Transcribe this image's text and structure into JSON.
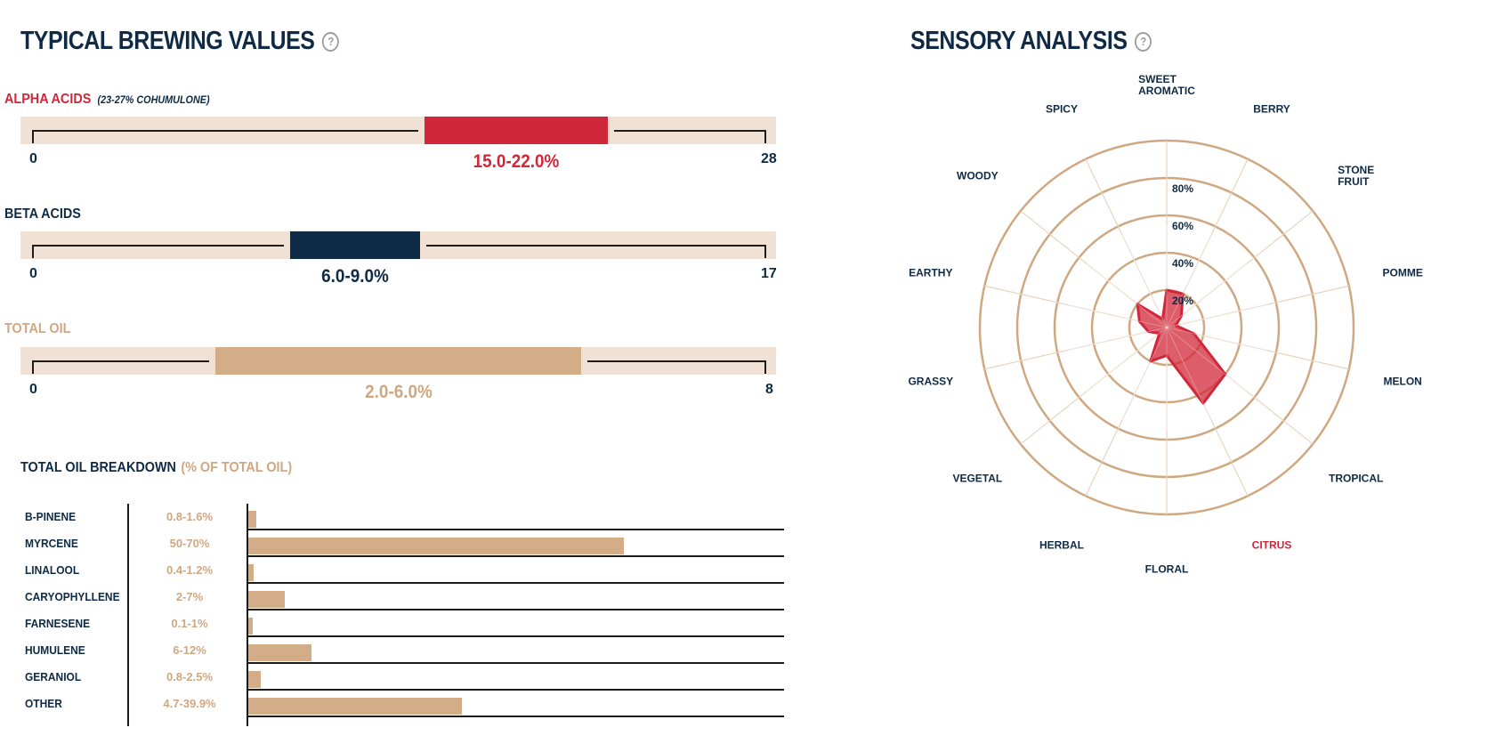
{
  "brewing": {
    "title": "TYPICAL BREWING VALUES",
    "help": "?",
    "alpha": {
      "label": "ALPHA ACIDS",
      "note": "(23-27% COHUMULONE)",
      "min_label": "0",
      "max_label": "28",
      "value_label": "15.0-22.0%",
      "min": 0,
      "max": 28,
      "low": 15.0,
      "high": 22.0,
      "color": "#d1273a"
    },
    "beta": {
      "label": "BETA ACIDS",
      "min_label": "0",
      "max_label": "17",
      "value_label": "6.0-9.0%",
      "min": 0,
      "max": 17,
      "low": 6.0,
      "high": 9.0,
      "color": "#0f2a44"
    },
    "oil": {
      "label": "TOTAL OIL",
      "min_label": "0",
      "max_label": "8",
      "value_label": "2.0-6.0%",
      "min": 0,
      "max": 8,
      "low": 2.0,
      "high": 6.0,
      "color": "#d3ac88"
    }
  },
  "oil_breakdown": {
    "title": "TOTAL OIL BREAKDOWN",
    "unit": "(% OF TOTAL OIL)",
    "rows": [
      {
        "name": "B-PINENE",
        "range": "0.8-1.6%",
        "high": 1.6
      },
      {
        "name": "MYRCENE",
        "range": "50-70%",
        "high": 70
      },
      {
        "name": "LINALOOL",
        "range": "0.4-1.2%",
        "high": 1.2
      },
      {
        "name": "CARYOPHYLLENE",
        "range": "2-7%",
        "high": 7
      },
      {
        "name": "FARNESENE",
        "range": "0.1-1%",
        "high": 1
      },
      {
        "name": "HUMULENE",
        "range": "6-12%",
        "high": 12
      },
      {
        "name": "GERANIOL",
        "range": "0.8-2.5%",
        "high": 2.5
      },
      {
        "name": "OTHER",
        "range": "4.7-39.9%",
        "high": 39.9
      }
    ]
  },
  "sensory": {
    "title": "SENSORY ANALYSIS",
    "help": "?"
  },
  "chart_data": {
    "type": "radar",
    "categories": [
      "SWEET AROMATIC",
      "BERRY",
      "STONE FRUIT",
      "POMME",
      "MELON",
      "TROPICAL",
      "CITRUS",
      "FLORAL",
      "HERBAL",
      "VEGETAL",
      "GRASSY",
      "EARTHY",
      "WOODY",
      "SPICY"
    ],
    "values": [
      20,
      20,
      10,
      5,
      15,
      40,
      45,
      15,
      20,
      5,
      10,
      15,
      20,
      5
    ],
    "ticks": [
      "20%",
      "40%",
      "60%",
      "80%"
    ],
    "rmax": 100,
    "highlight_category": "CITRUS",
    "fill_color": "#d1273a",
    "ring_color": "#cfa882",
    "grid": true
  }
}
